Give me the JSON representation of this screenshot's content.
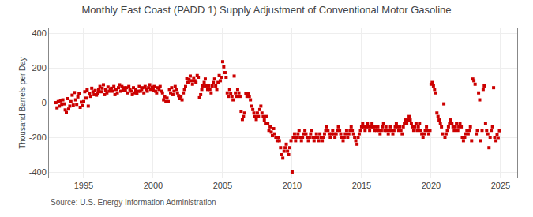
{
  "chart_data": {
    "type": "scatter",
    "title": "Monthly East Coast (PADD 1) Supply Adjustment of Conventional Motor Gasoline",
    "ylabel": "Thousand Barrels per Day",
    "annotations": [
      "Source: U.S. Energy Information Administration"
    ],
    "color": "#CC0000",
    "marker": "square",
    "grid": true,
    "xlim": [
      1992.5,
      2026.2
    ],
    "xticks": [
      1995,
      2000,
      2005,
      2010,
      2015,
      2020,
      2025
    ],
    "ylim": [
      -430,
      430
    ],
    "yticks": [
      -400,
      -200,
      0,
      200,
      400
    ],
    "x": [
      1993.0,
      1993.08,
      1993.17,
      1993.25,
      1993.33,
      1993.42,
      1993.5,
      1993.58,
      1993.67,
      1993.75,
      1993.83,
      1993.92,
      1994.0,
      1994.08,
      1994.17,
      1994.25,
      1994.33,
      1994.42,
      1994.5,
      1994.58,
      1994.67,
      1994.75,
      1994.83,
      1994.92,
      1995.0,
      1995.08,
      1995.17,
      1995.25,
      1995.33,
      1995.42,
      1995.5,
      1995.58,
      1995.67,
      1995.75,
      1995.83,
      1995.92,
      1996.0,
      1996.08,
      1996.17,
      1996.25,
      1996.33,
      1996.42,
      1996.5,
      1996.58,
      1996.67,
      1996.75,
      1996.83,
      1996.92,
      1997.0,
      1997.08,
      1997.17,
      1997.25,
      1997.33,
      1997.42,
      1997.5,
      1997.58,
      1997.67,
      1997.75,
      1997.83,
      1997.92,
      1998.0,
      1998.08,
      1998.17,
      1998.25,
      1998.33,
      1998.42,
      1998.5,
      1998.58,
      1998.67,
      1998.75,
      1998.83,
      1998.92,
      1999.0,
      1999.08,
      1999.17,
      1999.25,
      1999.33,
      1999.42,
      1999.5,
      1999.58,
      1999.67,
      1999.75,
      1999.83,
      1999.92,
      2000.0,
      2000.08,
      2000.17,
      2000.25,
      2000.33,
      2000.42,
      2000.5,
      2000.58,
      2000.67,
      2000.75,
      2000.83,
      2000.92,
      2001.0,
      2001.08,
      2001.17,
      2001.25,
      2001.33,
      2001.42,
      2001.5,
      2001.58,
      2001.67,
      2001.75,
      2001.83,
      2001.92,
      2002.0,
      2002.08,
      2002.17,
      2002.25,
      2002.33,
      2002.42,
      2002.5,
      2002.58,
      2002.67,
      2002.75,
      2002.83,
      2002.92,
      2003.0,
      2003.08,
      2003.17,
      2003.25,
      2003.33,
      2003.42,
      2003.5,
      2003.58,
      2003.67,
      2003.75,
      2003.83,
      2003.92,
      2004.0,
      2004.08,
      2004.17,
      2004.25,
      2004.33,
      2004.42,
      2004.5,
      2004.58,
      2004.67,
      2004.75,
      2004.83,
      2004.92,
      2005.0,
      2005.08,
      2005.17,
      2005.25,
      2005.33,
      2005.42,
      2005.5,
      2005.58,
      2005.67,
      2005.75,
      2005.83,
      2005.92,
      2006.0,
      2006.08,
      2006.17,
      2006.25,
      2006.33,
      2006.42,
      2006.5,
      2006.58,
      2006.67,
      2006.75,
      2006.83,
      2006.92,
      2007.0,
      2007.08,
      2007.17,
      2007.25,
      2007.33,
      2007.42,
      2007.5,
      2007.58,
      2007.67,
      2007.75,
      2007.83,
      2007.92,
      2008.0,
      2008.08,
      2008.17,
      2008.25,
      2008.33,
      2008.42,
      2008.5,
      2008.58,
      2008.67,
      2008.75,
      2008.83,
      2008.92,
      2009.0,
      2009.08,
      2009.17,
      2009.25,
      2009.33,
      2009.42,
      2009.5,
      2009.58,
      2009.67,
      2009.75,
      2009.83,
      2009.92,
      2010.0,
      2010.08,
      2010.17,
      2010.25,
      2010.33,
      2010.42,
      2010.5,
      2010.58,
      2010.67,
      2010.75,
      2010.83,
      2010.92,
      2011.0,
      2011.08,
      2011.17,
      2011.25,
      2011.33,
      2011.42,
      2011.5,
      2011.58,
      2011.67,
      2011.75,
      2011.83,
      2011.92,
      2012.0,
      2012.08,
      2012.17,
      2012.25,
      2012.33,
      2012.42,
      2012.5,
      2012.58,
      2012.67,
      2012.75,
      2012.83,
      2012.92,
      2013.0,
      2013.08,
      2013.17,
      2013.25,
      2013.33,
      2013.42,
      2013.5,
      2013.58,
      2013.67,
      2013.75,
      2013.83,
      2013.92,
      2014.0,
      2014.08,
      2014.17,
      2014.25,
      2014.33,
      2014.42,
      2014.5,
      2014.58,
      2014.67,
      2014.75,
      2014.83,
      2014.92,
      2015.0,
      2015.08,
      2015.17,
      2015.25,
      2015.33,
      2015.42,
      2015.5,
      2015.58,
      2015.67,
      2015.75,
      2015.83,
      2015.92,
      2016.0,
      2016.08,
      2016.17,
      2016.25,
      2016.33,
      2016.42,
      2016.5,
      2016.58,
      2016.67,
      2016.75,
      2016.83,
      2016.92,
      2017.0,
      2017.08,
      2017.17,
      2017.25,
      2017.33,
      2017.42,
      2017.5,
      2017.58,
      2017.67,
      2017.75,
      2017.83,
      2017.92,
      2018.0,
      2018.08,
      2018.17,
      2018.25,
      2018.33,
      2018.42,
      2018.5,
      2018.58,
      2018.67,
      2018.75,
      2018.83,
      2018.92,
      2019.0,
      2019.08,
      2019.17,
      2019.25,
      2019.33,
      2019.42,
      2019.5,
      2019.58,
      2019.67,
      2019.75,
      2019.83,
      2019.92,
      2020.0,
      2020.08,
      2020.17,
      2020.25,
      2020.33,
      2020.42,
      2020.5,
      2020.58,
      2020.67,
      2020.75,
      2020.83,
      2020.92,
      2021.0,
      2021.08,
      2021.17,
      2021.25,
      2021.33,
      2021.42,
      2021.5,
      2021.58,
      2021.67,
      2021.75,
      2021.83,
      2021.92,
      2022.0,
      2022.08,
      2022.17,
      2022.25,
      2022.33,
      2022.42,
      2022.5,
      2022.58,
      2022.67,
      2022.75,
      2022.83,
      2022.92,
      2023.0,
      2023.08,
      2023.17,
      2023.25,
      2023.33,
      2023.42,
      2023.5,
      2023.58,
      2023.67,
      2023.75,
      2023.83,
      2023.92,
      2024.0,
      2024.08,
      2024.17,
      2024.25,
      2024.33,
      2024.42,
      2024.5,
      2024.58,
      2024.67,
      2024.75,
      2024.83,
      2024.92
    ],
    "values": [
      2,
      -28,
      8,
      -18,
      12,
      -8,
      18,
      -5,
      -40,
      -55,
      25,
      -35,
      -18,
      8,
      45,
      -12,
      60,
      18,
      -8,
      35,
      55,
      -25,
      5,
      -15,
      8,
      65,
      28,
      75,
      -18,
      55,
      38,
      85,
      65,
      48,
      72,
      45,
      55,
      75,
      95,
      65,
      85,
      105,
      48,
      75,
      58,
      92,
      68,
      80,
      85,
      68,
      95,
      48,
      78,
      58,
      88,
      105,
      68,
      95,
      75,
      88,
      75,
      88,
      58,
      95,
      78,
      68,
      48,
      88,
      58,
      75,
      55,
      68,
      95,
      68,
      78,
      88,
      58,
      95,
      78,
      68,
      88,
      105,
      78,
      90,
      75,
      95,
      68,
      58,
      88,
      78,
      95,
      68,
      58,
      18,
      35,
      8,
      28,
      8,
      78,
      58,
      88,
      48,
      68,
      95,
      78,
      58,
      42,
      25,
      38,
      18,
      58,
      78,
      95,
      142,
      118,
      135,
      155,
      128,
      108,
      145,
      128,
      118,
      158,
      148,
      30,
      48,
      78,
      98,
      118,
      138,
      98,
      78,
      98,
      78,
      58,
      98,
      118,
      138,
      98,
      78,
      118,
      158,
      128,
      148,
      238,
      208,
      175,
      148,
      58,
      38,
      78,
      55,
      38,
      18,
      155,
      58,
      38,
      78,
      58,
      38,
      -48,
      -95,
      -78,
      -58,
      55,
      38,
      55,
      38,
      18,
      -18,
      -38,
      -58,
      -78,
      -95,
      -58,
      -78,
      -38,
      -18,
      -58,
      -78,
      -98,
      -118,
      -78,
      -120,
      -158,
      -138,
      -168,
      -188,
      -148,
      -178,
      -198,
      -218,
      -198,
      -218,
      -258,
      -298,
      -318,
      -278,
      -258,
      -238,
      -278,
      -298,
      -258,
      -218,
      -398,
      -198,
      -178,
      -218,
      -198,
      -178,
      -158,
      -198,
      -218,
      -198,
      -178,
      -158,
      -178,
      -198,
      -218,
      -198,
      -178,
      -158,
      -198,
      -218,
      -198,
      -178,
      -198,
      -218,
      -178,
      -198,
      -218,
      -198,
      -178,
      -158,
      -138,
      -158,
      -178,
      -198,
      -178,
      -158,
      -178,
      -198,
      -178,
      -158,
      -138,
      -158,
      -178,
      -198,
      -218,
      -198,
      -178,
      -158,
      -198,
      -178,
      -158,
      -138,
      -158,
      -178,
      -198,
      -218,
      -238,
      -198,
      -178,
      -158,
      -138,
      -118,
      -138,
      -158,
      -138,
      -118,
      -138,
      -158,
      -138,
      -118,
      -138,
      -158,
      -138,
      -158,
      -138,
      -158,
      -178,
      -158,
      -138,
      -118,
      -158,
      -138,
      -158,
      -178,
      -158,
      -138,
      -158,
      -178,
      -158,
      -138,
      -118,
      -138,
      -158,
      -138,
      -158,
      -178,
      -138,
      -118,
      -98,
      -118,
      -98,
      -78,
      -98,
      -118,
      -138,
      -158,
      -138,
      -118,
      -158,
      -138,
      -118,
      -158,
      -178,
      -198,
      -178,
      -158,
      -138,
      -158,
      -178,
      -158,
      108,
      118,
      98,
      78,
      58,
      -58,
      -78,
      -98,
      -118,
      -138,
      -178,
      -5,
      -198,
      -178,
      -158,
      -138,
      -118,
      -98,
      -118,
      -138,
      -158,
      -138,
      -118,
      -158,
      -138,
      -118,
      -138,
      -198,
      -218,
      -198,
      -178,
      -158,
      -178,
      -158,
      -138,
      -218,
      138,
      128,
      108,
      -178,
      -158,
      58,
      18,
      -218,
      -158,
      78,
      98,
      -118,
      -158,
      -178,
      -258,
      -198,
      -158,
      -138,
      88,
      -198,
      -218,
      -180,
      -200,
      -160
    ]
  }
}
